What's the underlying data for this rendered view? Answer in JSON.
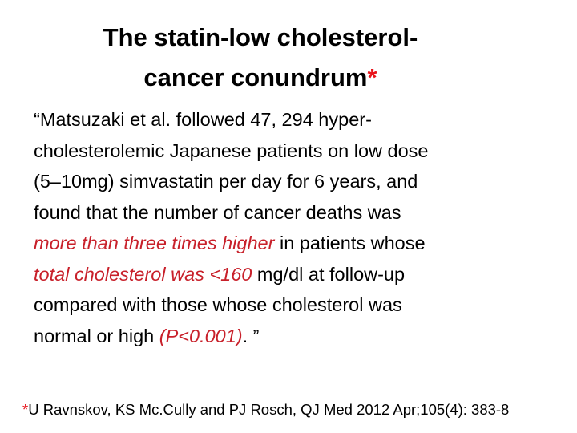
{
  "title": {
    "lines": [
      "The statin-low cholesterol-",
      "cancer conundrum"
    ],
    "mark": "*"
  },
  "quote": {
    "lines": [
      [
        {
          "text": "“Matsuzaki et al. followed 47, 294 hyper-",
          "emphasis": false
        }
      ],
      [
        {
          "text": "cholesterolemic Japanese patients on low dose",
          "emphasis": false
        }
      ],
      [
        {
          "text": "(5–10mg) simvastatin per day for 6 years, and",
          "emphasis": false
        }
      ],
      [
        {
          "text": "found that the number of cancer deaths was",
          "emphasis": false
        }
      ],
      [
        {
          "text": "more than three times higher",
          "emphasis": true
        },
        {
          "text": " in patients whose",
          "emphasis": false
        }
      ],
      [
        {
          "text": "total cholesterol was <160",
          "emphasis": true
        },
        {
          "text": " mg/dl at follow-up",
          "emphasis": false
        }
      ],
      [
        {
          "text": "compared with those whose cholesterol was",
          "emphasis": false
        }
      ],
      [
        {
          "text": "normal or high ",
          "emphasis": false
        },
        {
          "text": "(P<0.001)",
          "emphasis": true
        },
        {
          "text": ". ”",
          "emphasis": false
        }
      ]
    ]
  },
  "footnote": {
    "mark": "*",
    "text": "U Ravnskov, KS Mc.Cully and PJ Rosch, QJ Med 2012 Apr;105(4): 383-8"
  }
}
